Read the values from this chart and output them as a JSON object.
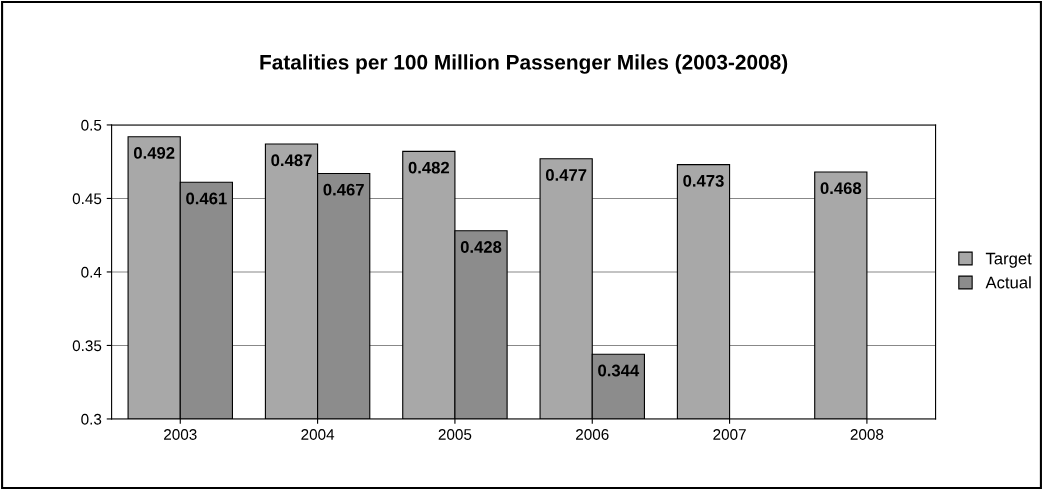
{
  "chart_data": {
    "type": "bar",
    "title": "Fatalities per 100 Million Passenger Miles (2003-2008)",
    "categories": [
      "2003",
      "2004",
      "2005",
      "2006",
      "2007",
      "2008"
    ],
    "series": [
      {
        "name": "Target",
        "color": "#a8a8a8",
        "values": [
          0.492,
          0.487,
          0.482,
          0.477,
          0.473,
          0.468
        ]
      },
      {
        "name": "Actual",
        "color": "#8c8c8c",
        "values": [
          0.461,
          0.467,
          0.428,
          0.344,
          null,
          null
        ]
      }
    ],
    "ylim": [
      0.3,
      0.5
    ],
    "yticks": [
      0.3,
      0.35,
      0.4,
      0.45,
      0.5
    ],
    "grid": "y",
    "legend": "right",
    "data_labels": true
  }
}
